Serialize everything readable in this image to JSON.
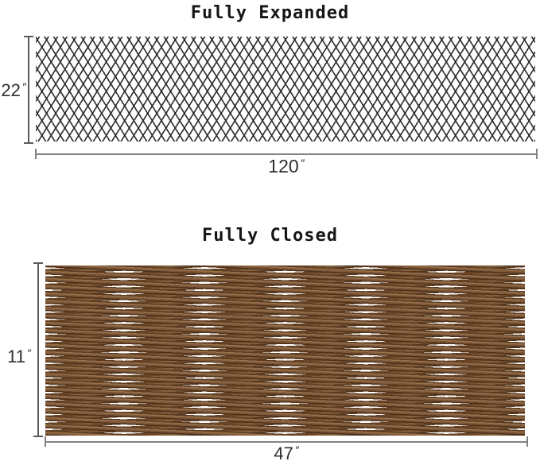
{
  "diagram": {
    "sections": [
      {
        "id": "fully-expanded",
        "title": "Fully Expanded",
        "height": {
          "value": "22",
          "unit": "″"
        },
        "width": {
          "value": "120",
          "unit": "″"
        }
      },
      {
        "id": "fully-closed",
        "title": "Fully Closed",
        "height": {
          "value": "11",
          "unit": "″"
        },
        "width": {
          "value": "47",
          "unit": "″"
        }
      }
    ],
    "colors": {
      "background": "#ffffff",
      "lattice_line": "#262626",
      "willow_dark": "#4f3118",
      "willow_mid": "#7d573a",
      "willow_light": "#96714b",
      "dimension_line_vertical": "#5a5a5a",
      "dimension_line_horizontal": "#828282",
      "label_text": "#2e2e2e"
    }
  }
}
